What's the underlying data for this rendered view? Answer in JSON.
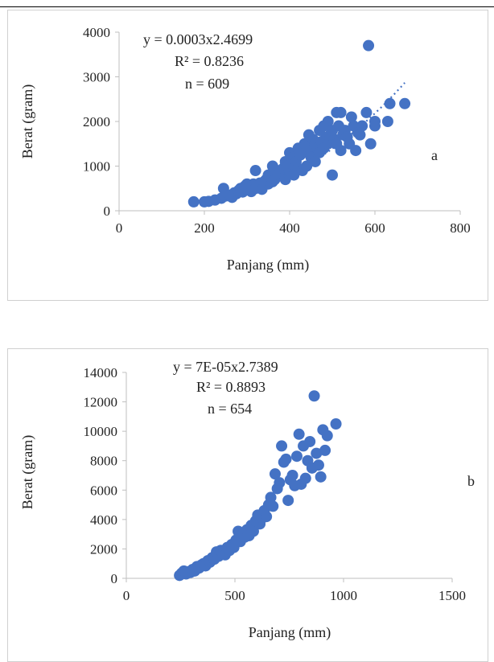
{
  "colors": {
    "marker": "#4472C4",
    "axis": "#bfbfbf",
    "text": "#222222"
  },
  "chart_data": [
    {
      "type": "scatter",
      "panel_label": "a",
      "xlabel": "Panjang (mm)",
      "ylabel": "Berat (gram)",
      "xlim": [
        0,
        800
      ],
      "ylim": [
        0,
        4000
      ],
      "x_ticks": [
        "0",
        "200",
        "400",
        "600",
        "800"
      ],
      "y_ticks": [
        "0",
        "1000",
        "2000",
        "3000",
        "4000"
      ],
      "annotation": [
        "y = 0.0003x2.4699",
        "R² = 0.8236",
        "n = 609"
      ],
      "trendline": {
        "kind": "power",
        "a": 0.0003,
        "b": 2.4699,
        "x_range": [
          180,
          670
        ]
      },
      "grid": false,
      "legend": "none",
      "points": [
        [
          175,
          200
        ],
        [
          200,
          200
        ],
        [
          210,
          210
        ],
        [
          225,
          240
        ],
        [
          240,
          280
        ],
        [
          245,
          500
        ],
        [
          250,
          330
        ],
        [
          260,
          350
        ],
        [
          265,
          300
        ],
        [
          270,
          400
        ],
        [
          275,
          380
        ],
        [
          280,
          450
        ],
        [
          285,
          500
        ],
        [
          290,
          420
        ],
        [
          295,
          550
        ],
        [
          300,
          480
        ],
        [
          300,
          600
        ],
        [
          305,
          520
        ],
        [
          310,
          430
        ],
        [
          315,
          600
        ],
        [
          320,
          900
        ],
        [
          320,
          500
        ],
        [
          325,
          560
        ],
        [
          330,
          620
        ],
        [
          335,
          480
        ],
        [
          340,
          650
        ],
        [
          345,
          700
        ],
        [
          350,
          600
        ],
        [
          350,
          800
        ],
        [
          355,
          750
        ],
        [
          360,
          1000
        ],
        [
          360,
          650
        ],
        [
          365,
          700
        ],
        [
          370,
          900
        ],
        [
          375,
          800
        ],
        [
          380,
          850
        ],
        [
          385,
          950
        ],
        [
          390,
          1100
        ],
        [
          390,
          700
        ],
        [
          395,
          1000
        ],
        [
          400,
          1300
        ],
        [
          400,
          900
        ],
        [
          405,
          1050
        ],
        [
          410,
          1200
        ],
        [
          410,
          800
        ],
        [
          415,
          1100
        ],
        [
          420,
          1400
        ],
        [
          420,
          950
        ],
        [
          425,
          1250
        ],
        [
          430,
          1300
        ],
        [
          430,
          900
        ],
        [
          435,
          1500
        ],
        [
          440,
          1450
        ],
        [
          440,
          1000
        ],
        [
          445,
          1700
        ],
        [
          450,
          1350
        ],
        [
          450,
          1200
        ],
        [
          455,
          1600
        ],
        [
          460,
          1500
        ],
        [
          460,
          1100
        ],
        [
          465,
          1400
        ],
        [
          470,
          1800
        ],
        [
          470,
          1300
        ],
        [
          475,
          1550
        ],
        [
          480,
          1900
        ],
        [
          480,
          1400
        ],
        [
          485,
          1650
        ],
        [
          490,
          2000
        ],
        [
          490,
          1500
        ],
        [
          495,
          1700
        ],
        [
          500,
          1800
        ],
        [
          500,
          800
        ],
        [
          505,
          1600
        ],
        [
          510,
          2200
        ],
        [
          510,
          1500
        ],
        [
          515,
          1900
        ],
        [
          520,
          2200
        ],
        [
          520,
          1350
        ],
        [
          525,
          1700
        ],
        [
          530,
          1800
        ],
        [
          535,
          1650
        ],
        [
          540,
          1500
        ],
        [
          545,
          2100
        ],
        [
          550,
          1900
        ],
        [
          555,
          1350
        ],
        [
          560,
          1750
        ],
        [
          565,
          1700
        ],
        [
          570,
          1900
        ],
        [
          580,
          2200
        ],
        [
          585,
          3700
        ],
        [
          590,
          1500
        ],
        [
          600,
          2000
        ],
        [
          600,
          1900
        ],
        [
          630,
          2000
        ],
        [
          635,
          2400
        ],
        [
          670,
          2400
        ]
      ]
    },
    {
      "type": "scatter",
      "panel_label": "b",
      "xlabel": "Panjang (mm)",
      "ylabel": "Berat (gram)",
      "xlim": [
        0,
        1500
      ],
      "ylim": [
        0,
        14000
      ],
      "x_ticks": [
        "0",
        "500",
        "1000",
        "1500"
      ],
      "y_ticks": [
        "0",
        "2000",
        "4000",
        "6000",
        "8000",
        "10000",
        "12000",
        "14000"
      ],
      "annotation": [
        "y = 7E-05x2.7389",
        "R² = 0.8893",
        "n = 654"
      ],
      "trendline": null,
      "grid": false,
      "legend": "none",
      "points": [
        [
          245,
          200
        ],
        [
          255,
          350
        ],
        [
          265,
          500
        ],
        [
          275,
          300
        ],
        [
          285,
          450
        ],
        [
          295,
          400
        ],
        [
          305,
          600
        ],
        [
          315,
          500
        ],
        [
          325,
          800
        ],
        [
          335,
          700
        ],
        [
          345,
          900
        ],
        [
          355,
          1000
        ],
        [
          365,
          850
        ],
        [
          375,
          1200
        ],
        [
          385,
          1100
        ],
        [
          395,
          1400
        ],
        [
          405,
          1300
        ],
        [
          415,
          1800
        ],
        [
          425,
          1500
        ],
        [
          435,
          1900
        ],
        [
          445,
          1700
        ],
        [
          455,
          1600
        ],
        [
          465,
          2100
        ],
        [
          475,
          1900
        ],
        [
          485,
          2300
        ],
        [
          495,
          2100
        ],
        [
          505,
          2600
        ],
        [
          515,
          3200
        ],
        [
          525,
          2500
        ],
        [
          535,
          3000
        ],
        [
          545,
          2800
        ],
        [
          555,
          3300
        ],
        [
          565,
          2900
        ],
        [
          575,
          3600
        ],
        [
          585,
          3200
        ],
        [
          595,
          3900
        ],
        [
          605,
          4300
        ],
        [
          615,
          3700
        ],
        [
          625,
          4100
        ],
        [
          635,
          4600
        ],
        [
          645,
          4200
        ],
        [
          655,
          5000
        ],
        [
          665,
          5500
        ],
        [
          675,
          4900
        ],
        [
          685,
          7100
        ],
        [
          695,
          6100
        ],
        [
          705,
          6500
        ],
        [
          715,
          9000
        ],
        [
          725,
          7900
        ],
        [
          735,
          8100
        ],
        [
          745,
          5300
        ],
        [
          755,
          6700
        ],
        [
          765,
          7000
        ],
        [
          775,
          6300
        ],
        [
          785,
          8300
        ],
        [
          795,
          9800
        ],
        [
          805,
          6400
        ],
        [
          815,
          9000
        ],
        [
          825,
          6800
        ],
        [
          835,
          8000
        ],
        [
          845,
          9300
        ],
        [
          855,
          7500
        ],
        [
          865,
          12400
        ],
        [
          875,
          8500
        ],
        [
          885,
          7700
        ],
        [
          895,
          6900
        ],
        [
          905,
          10100
        ],
        [
          915,
          8700
        ],
        [
          925,
          9700
        ],
        [
          965,
          10500
        ]
      ]
    }
  ]
}
